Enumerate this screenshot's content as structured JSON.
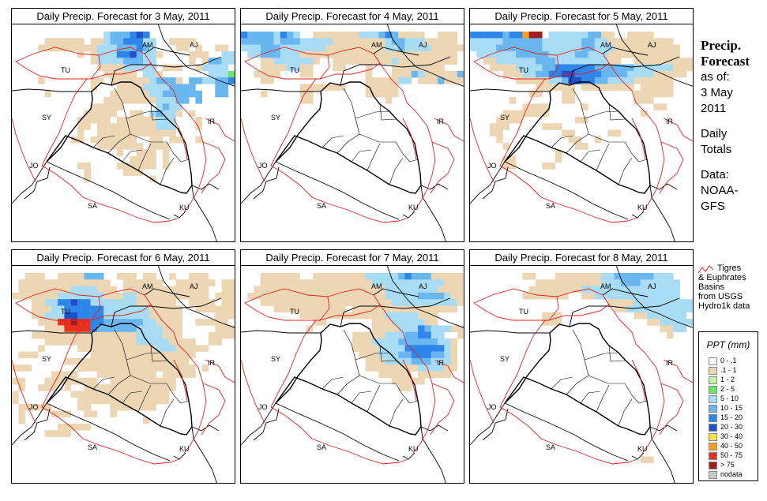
{
  "panels": [
    {
      "title": "Daily Precip. Forecast for  3 May, 2011"
    },
    {
      "title": "Daily Precip. Forecast for  4 May, 2011"
    },
    {
      "title": "Daily Precip. Forecast for  5 May, 2011"
    },
    {
      "title": "Daily Precip. Forecast for  6 May, 2011"
    },
    {
      "title": "Daily Precip. Forecast for  7 May, 2011"
    },
    {
      "title": "Daily Precip. Forecast for  8 May, 2011"
    }
  ],
  "map_labels": [
    "AM",
    "AJ",
    "TU",
    "SY",
    "IR",
    "JO",
    "SA",
    "KU"
  ],
  "sidebar": {
    "line1": "Precip.",
    "line2": "Forecast",
    "line3": "as of:",
    "line4": "3 May",
    "line5": "2011",
    "line6": "Daily",
    "line7": "Totals",
    "line8": "Data:",
    "line9": "NOAA-",
    "line10": "GFS"
  },
  "basin_legend": {
    "line1": "Tigres",
    "line2": "& Euphrates",
    "line3": "Basins",
    "line4": "from USGS",
    "line5": "Hydro1k data",
    "color": "#e02020"
  },
  "ppt_legend": {
    "title": "PPT (mm)",
    "items": [
      {
        "label": "0 - .1",
        "color": "#ffffff"
      },
      {
        "label": ".1 - 1",
        "color": "#ecd6b4"
      },
      {
        "label": "1 - 2",
        "color": "#bff5a8"
      },
      {
        "label": "2 - 5",
        "color": "#66e866"
      },
      {
        "label": "5 - 10",
        "color": "#a8dcf5"
      },
      {
        "label": "10 - 15",
        "color": "#6ab6f0"
      },
      {
        "label": "15 - 20",
        "color": "#2e86e8"
      },
      {
        "label": "20 - 30",
        "color": "#1e50c8"
      },
      {
        "label": "30 - 40",
        "color": "#f7e04a"
      },
      {
        "label": "40 - 50",
        "color": "#f5a020"
      },
      {
        "label": "50 - 75",
        "color": "#e8321e"
      },
      {
        "label": "> 75",
        "color": "#a01e1e"
      },
      {
        "label": "nodata",
        "color": "#c8c8c8"
      }
    ]
  },
  "precip_grids": [
    "..............BCCCDED.............\n.....AAAAAA.AABCCDDDBB..AAAA.......\n....AAAAAAAAABBBCCCDCB...AA.A..AA..\n..........A.ABBBDDECBBA....AAA..BB.\n............ABBBBCCCBB.....A.ACCBB.\n.............AAAABBBBB.AAA..ABBBB..\n..............AAAAA.BBA.......BBBF.\n....A.......AA.AAAAAABCCCA.CCBBCCD.\n............A...AAAABBBBCCCC...CC..\n.....A.........AAAAAABBCCCCCC..CC..\n..............AAAAAAAABBBCC.C......\n............AAAAA.....BCBB.........\n...........AAAAA..AA.BCBBA.A.......\n..........AAAAA.AAAAAABBB...A......\n..........AA.AAAAAAAAABBB...A......\n..........A..AAAAAAAAAAAA..........\n.........AA.AAAAAAA..AA.AA..A......\n.............AAAAAAA.AAA...........\n................A..AAA.A...........\n..................AAAA.A...........\n..........AA....AAAAAA.A...........\n...........A.....AAA...............\n...........A.........A.............\n...................................\n...................................\n...................................\n...................................\n...................................\n...................................",
    "DCCCCBDCB..AAAAAAABBBCDCAAAA..AAA.\nCCCCCBCCCBBBBBAAAAAAAABCCBBBAAAAA..\nBBBCCCBBBBBBBAAAAAAAAABBCBBBBAAAAA.\n.BBCCCBBBAAAAAAAAAAAAAAAAAAAAAAAA..\n...AABBBBBBA..AAAAAAAAABAAAAAAAAA..\n...AAAABBAA...AA...A...AAAAAAAA....\n..AAAA...AA........A...AAACBAAAAACA\n...AA..............AAAAABB.AAACAAAC\n.........AAAAAAA...AAAAA...........\n...A.....AA........AAAAA...........\n.........AA...........A............\n...................................\n...................................\n...................................\n...................................\n...................................\n...................................\n...................................\n...................................\n...................................\n...................................\n...................................\n...................................\n...................................\n...................................\n...................................\n...................................\n...................................\n...................................",
    "DDDDDCDDHJJ.BBBBBBCCAA..AAAA.......\nBBBBBCCCCCCBBBBBBCCBBAAAAAAAAAA....\nBBBBCCCCCCCBBBBBBCCBBBAAAAAAAAAA...\n.BBBBBBCCCCCBBBBCCBBBAAAAAAAAAAA...\n..AABBBBBBCCCBBBBBBBBAA..AAAAAAAAA.\n...AAAABBBBCCDDDDDDCCCCCCBBBBBBAAA.\n.....AAABBCCDDEEDDDDCCCCBBBBAAAAA..\n.......AAAAABBCEEDDCCBBBBAAAAAA....\n..........AAAAAA.AAAAAAAA.AAAAA....\n.........AA...AA.........AAAAAA....\n......A.......AA.........AAA.......\n........AAAA.....A..........AA.....\n.....AAAAAAA..............A........\n....AAAA........AA.................\n...AAA.....AAA.....................\n...AA.........AA.....AA............\n....A..........AA..A...............\n.....A..........AA.................\n.............A.....................\n.....AA......A.....................\n.....AA....AA......................\n...................................\n...................................\n...................................\n...................................\n...................................\n...................................\n...................................\n...................................",
    "..AAA..AAAACCC..AAA.AA..A..AAA.....\n.AAAAAAAAAAAAAA..AAAAAA..AAAAAA.AAA\n.AAAAAAAABBBBAAA.AAAAAAAAAAAAA..AAA\nAAAAAAABBBBBBBAAABBAAAAAAAAAAA.AAAA\n...AABBDDEDDBBBBBBBAAAAAA..AAAA.AAA\n...AAABBDDDDDDBBBBBBBAAAAA..AAAAAAA\n...AABBBEEDDDDBBBBBBBAAAAA.....AAAA\n....AAAIIJIIDDCCCCCCBBAAAA..AAAAA..\n.....AAAIIIIDCCCCCCBBBBAAA.....AAAA\n...AAAAAAAAAAAAAAAABBBBAAA....AAAAA\n.....AAAAAAAAAAAAAABBBBBAAAA..AA...\n....A.....AAAAAAAAAAAABBBAAAAA.....\n.AAA........AAAAAAAAAAAAAAAA.......\n........AAAAAAAAAAAAAAAAAAA........\nAAA.......AAAAAAAAAAAAAAAAAA.A.....\n......AAAA...AAAAAAAAA.AAAAA.......\nAA...AAAAAAAA..AAAAAAAAAA..........\n.A..AAA.A..AAAAAAAAAAAAAA..........\nA........AAAAAAAAAAAAAAA...........\nA.........AAAAAAAAAAAAAA...........\n.AAAAA....AA...AAAAAAA.............\n.A....AAA..AA..A...................\n.A..................A..............\n.......AAAAA.......................\n.....AAAA..........................\n...................................\n...................................\n...................................\n...................................",
    "...AAAAAA..AAAAAAAABBBBBCDCCCAAAAAA\n...AAAAAAAAAAAAAAAAABBBBBBBBBBBAAAA\n..AAAAAAAAAAAAAAAAAAAABBBBBBBBAAAA.\n.AAAAAAAAAAAAAAAAAAAAABBBBBCCCCBAA.\n...AAAAAAAAAAAAAAAAAAAABBBBBBBBBBA.\n.....AAAAAAAAAAA.AAAAAAAAAAAAAAAA..\n.........AAAAAAAAAAAAABBBBBAAA.....\n...........AA.......AAABBBBBAA.....\n..........A.........AAAABBBDCBBBAA.\n.................AAAAABBBCCDDBB..AA\n.................AAABBBBCCCCCCBBA..\n.................AAAABBBBDDDDDDBA..\n..................AAABBBCCDDDCCBA..\n...................AAABBBBCCCBBBA..\n...................AAAAAAAABBBBAA..\n.....................AAAAA.AAAAA...\n.......................AAAAA.......\n........................AA.........\n...................................\n...................................\n...................................\n...................................\n...................................\n...................................\n...................................\n...................................\n...................................\n...................................\n...................................",
    "........AA...AAAAAAABBCCCCCCBBB....\n..........AAAAAAAAAABBBCCCBBBBBB...\n.........AAAAAAAABBBBBBBBBBBBBBB...\n........AAAAAAA..AABBBBBBBBBBBBB...\n.....................AAAABBBBBBBBB.\n......................AABBBBBBBBBB.\n...........AAA...........AABBBBBB..\n...........AAA.............AABBBBB.\n.............................AABB..\n..............................A....\n...................................\n...................................\n...................................\n...................................\n...................................\n...................................\n...................................\n...................................\n...................................\n...................................\n...................................\n...................................\n...................................\n...................................\n...................................\n...................................\n...................................\n...................................\n..........................AA......."
  ]
}
